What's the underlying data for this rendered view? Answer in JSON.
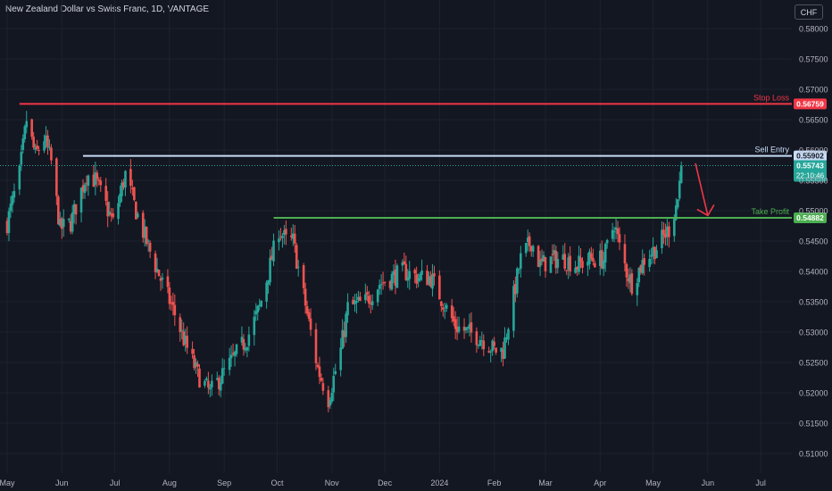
{
  "header": {
    "title": "New Zealand Dollar vs Swiss Franc, 1D, VANTAGE",
    "currency": "CHF"
  },
  "colors": {
    "background": "#131722",
    "grid": "#1e222d",
    "up": "#26a69a",
    "down": "#ef5350",
    "stop_loss": "#f23645",
    "sell_entry": "#c8dcf5",
    "take_profit": "#4caf50",
    "axis_text": "#b2b5be"
  },
  "chart_data": {
    "type": "candlestick",
    "y_axis": {
      "min": 0.507,
      "max": 0.5825,
      "ticks": [
        "0.51000",
        "0.51500",
        "0.52000",
        "0.52500",
        "0.53000",
        "0.53500",
        "0.54000",
        "0.54500",
        "0.55000",
        "0.55500",
        "0.56000",
        "0.56500",
        "0.57000",
        "0.57500",
        "0.58000"
      ]
    },
    "x_axis": {
      "ticks": [
        "May",
        "Jun",
        "Jul",
        "Aug",
        "Sep",
        "Oct",
        "Nov",
        "Dec",
        "2024",
        "Feb",
        "Mar",
        "Apr",
        "May",
        "Jun",
        "Jul"
      ]
    },
    "anchors": [
      [
        "2023-05-01",
        0.548
      ],
      [
        "2023-05-08",
        0.556
      ],
      [
        "2023-05-12",
        0.565
      ],
      [
        "2023-05-17",
        0.559
      ],
      [
        "2023-05-22",
        0.562
      ],
      [
        "2023-05-26",
        0.558
      ],
      [
        "2023-05-31",
        0.547
      ],
      [
        "2023-06-06",
        0.548
      ],
      [
        "2023-06-15",
        0.556
      ],
      [
        "2023-06-20",
        0.555
      ],
      [
        "2023-06-30",
        0.548
      ],
      [
        "2023-07-07",
        0.556
      ],
      [
        "2023-07-13",
        0.55
      ],
      [
        "2023-07-20",
        0.544
      ],
      [
        "2023-07-28",
        0.538
      ],
      [
        "2023-08-04",
        0.533
      ],
      [
        "2023-08-10",
        0.528
      ],
      [
        "2023-08-17",
        0.523
      ],
      [
        "2023-08-24",
        0.52
      ],
      [
        "2023-08-31",
        0.523
      ],
      [
        "2023-09-07",
        0.526
      ],
      [
        "2023-09-14",
        0.529
      ],
      [
        "2023-09-21",
        0.534
      ],
      [
        "2023-09-27",
        0.541
      ],
      [
        "2023-10-02",
        0.547
      ],
      [
        "2023-10-06",
        0.545
      ],
      [
        "2023-10-10",
        0.545
      ],
      [
        "2023-10-18",
        0.533
      ],
      [
        "2023-10-24",
        0.524
      ],
      [
        "2023-10-30",
        0.519
      ],
      [
        "2023-11-06",
        0.527
      ],
      [
        "2023-11-10",
        0.534
      ],
      [
        "2023-11-20",
        0.535
      ],
      [
        "2023-11-28",
        0.538
      ],
      [
        "2023-12-05",
        0.539
      ],
      [
        "2023-12-12",
        0.54
      ],
      [
        "2023-12-20",
        0.539
      ],
      [
        "2023-12-27",
        0.539
      ],
      [
        "2024-01-03",
        0.535
      ],
      [
        "2024-01-10",
        0.531
      ],
      [
        "2024-01-17",
        0.53
      ],
      [
        "2024-01-25",
        0.529
      ],
      [
        "2024-02-01",
        0.527
      ],
      [
        "2024-02-06",
        0.527
      ],
      [
        "2024-02-12",
        0.536
      ],
      [
        "2024-02-16",
        0.542
      ],
      [
        "2024-02-22",
        0.545
      ],
      [
        "2024-02-27",
        0.541
      ],
      [
        "2024-03-05",
        0.542
      ],
      [
        "2024-03-12",
        0.542
      ],
      [
        "2024-03-19",
        0.541
      ],
      [
        "2024-03-26",
        0.542
      ],
      [
        "2024-04-03",
        0.542
      ],
      [
        "2024-04-09",
        0.548
      ],
      [
        "2024-04-12",
        0.544
      ],
      [
        "2024-04-16",
        0.54
      ],
      [
        "2024-04-19",
        0.538
      ],
      [
        "2024-04-26",
        0.542
      ],
      [
        "2024-05-03",
        0.544
      ],
      [
        "2024-05-10",
        0.547
      ],
      [
        "2024-05-15",
        0.552
      ],
      [
        "2024-05-17",
        0.5574
      ]
    ],
    "lines": [
      {
        "label": "Stop Loss",
        "value": 0.56759,
        "price_label": "0.56759",
        "start": "2023-05-08",
        "color": "#f23645"
      },
      {
        "label": "Sell Entry",
        "value": 0.55902,
        "price_label": "0.55902",
        "start": "2023-06-13",
        "color": "#c8dcf5"
      },
      {
        "label": "Take Profit",
        "value": 0.54882,
        "price_label": "0.54882",
        "start": "2023-09-29",
        "color": "#4caf50"
      }
    ],
    "last_price": {
      "value": 0.55743,
      "label": "0.55743",
      "countdown": "22:10:46"
    }
  }
}
